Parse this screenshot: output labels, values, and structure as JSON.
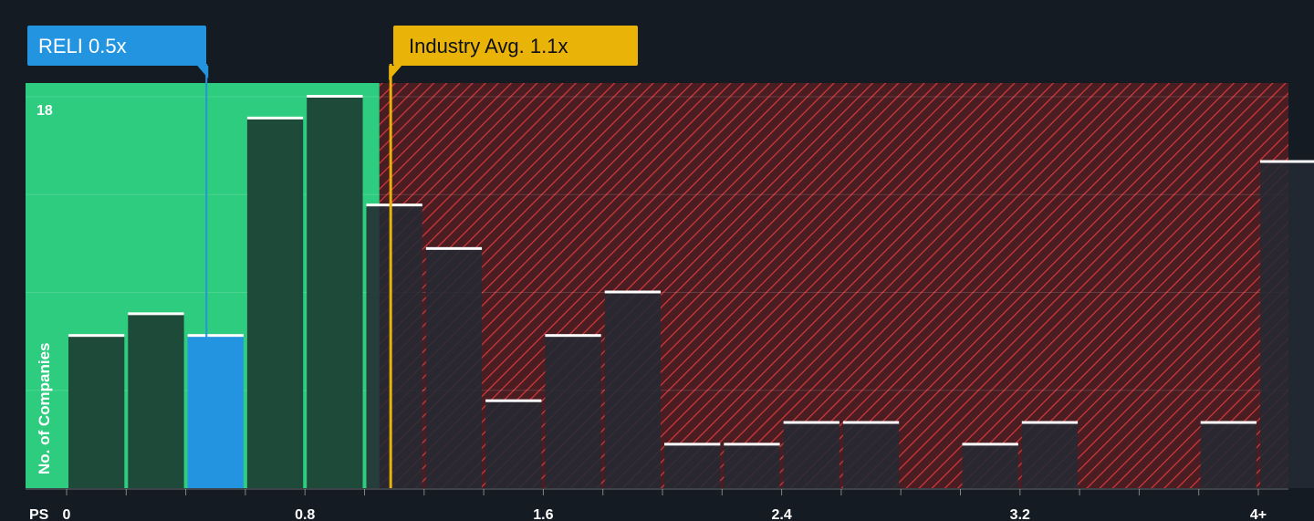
{
  "chart_data": {
    "type": "bar",
    "xlabel": "PS",
    "ylabel": "No. of Companies",
    "x_ticks": [
      "0",
      "0.8",
      "1.6",
      "2.4",
      "3.2",
      "4+"
    ],
    "x_tick_values": [
      0,
      0.8,
      1.6,
      2.4,
      3.2,
      4.0
    ],
    "y_tick_label": "18",
    "y_tick_value": 18,
    "ylim": [
      0,
      18.6
    ],
    "bin_width": 0.2,
    "bins_start": [
      0,
      0.2,
      0.4,
      0.6,
      0.8,
      1.0,
      1.2,
      1.4,
      1.6,
      1.8,
      2.0,
      2.2,
      2.4,
      2.6,
      2.8,
      3.0,
      3.2,
      3.4,
      3.6,
      3.8,
      4.0
    ],
    "values": [
      7,
      8,
      7,
      17,
      18,
      13,
      11,
      4,
      7,
      9,
      2,
      2,
      3,
      3,
      0,
      2,
      3,
      0,
      0,
      3,
      15
    ],
    "highlight_bin": 2,
    "company": {
      "label": "RELI 0.5x",
      "value": 0.5
    },
    "industry": {
      "label": "Industry Avg. 1.1x",
      "value": 1.1
    },
    "fair_region_end": 1.05,
    "colors": {
      "background": "#151b23",
      "fair_region": "#2ecc7f",
      "bar_in_fair": "#1e4a3a",
      "bar_over": "#242a33",
      "highlight_bar": "#2394e0",
      "over_region": "#6e2424",
      "hatch": "#d63a3a",
      "industry": "#eab308",
      "bar_cap": "#ffffff"
    }
  }
}
